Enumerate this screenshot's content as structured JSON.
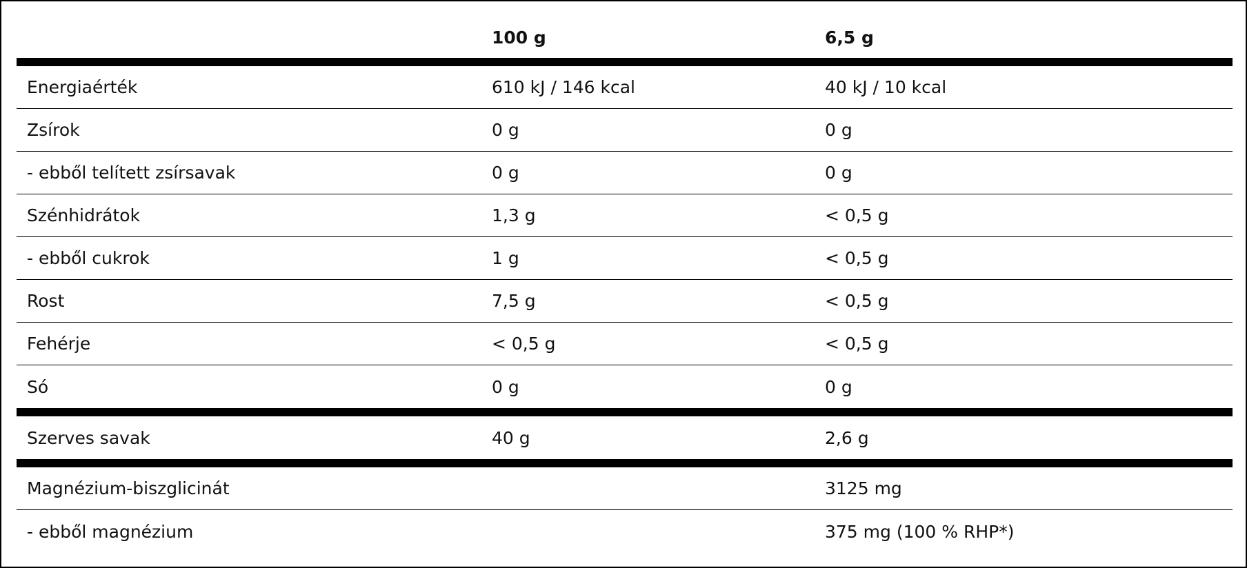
{
  "table": {
    "header": [
      "100 g",
      "6,5 g"
    ],
    "groups": [
      [
        {
          "label": "Energiaérték",
          "per_100g": "610 kJ / 146 kcal",
          "per_serving": "40 kJ / 10 kcal"
        },
        {
          "label": "Zsírok",
          "per_100g": "0 g",
          "per_serving": "0 g"
        },
        {
          "label": "- ebből telített zsírsavak",
          "per_100g": "0 g",
          "per_serving": "0 g"
        },
        {
          "label": "Szénhidrátok",
          "per_100g": "1,3 g",
          "per_serving": "< 0,5 g"
        },
        {
          "label": "- ebből cukrok",
          "per_100g": "1 g",
          "per_serving": "< 0,5 g"
        },
        {
          "label": "Rost",
          "per_100g": "7,5 g",
          "per_serving": "< 0,5 g"
        },
        {
          "label": "Fehérje",
          "per_100g": "< 0,5 g",
          "per_serving": "< 0,5 g"
        },
        {
          "label": "Só",
          "per_100g": "0 g",
          "per_serving": "0 g"
        }
      ],
      [
        {
          "label": "Szerves savak",
          "per_100g": "40 g",
          "per_serving": "2,6 g"
        }
      ],
      [
        {
          "label": "Magnézium-biszglicinát",
          "per_serving": "3125 mg"
        },
        {
          "label": "- ebből magnézium",
          "per_serving": "375 mg (100 % RHP*)"
        }
      ]
    ]
  }
}
